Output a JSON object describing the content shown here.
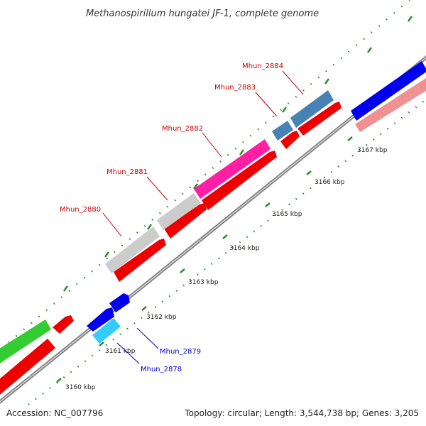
{
  "title": "Methanospirillum hungatei JF-1, complete genome",
  "footer": {
    "accession": "Accession: NC_007796",
    "summary": "Topology: circular; Length: 3,544,738 bp; Genes: 3,205"
  },
  "colors": {
    "backbone": "#888888",
    "tick": "#2e8b2e",
    "label_red": "#cc0000",
    "label_blue": "#0000cc"
  },
  "scale_labels": [
    "3160 kbp",
    "3161 kbp",
    "3162 kbp",
    "3163 kbp",
    "3164 kbp",
    "3165 kbp",
    "3166 kbp",
    "3167 kbp"
  ],
  "genes": [
    {
      "label": "Mhun_2878",
      "color": "#33ccff",
      "label_color": "#0000cc"
    },
    {
      "label": "Mhun_2879",
      "color": "#0000ee",
      "label_color": "#0000cc"
    },
    {
      "label": "Mhun_2880",
      "color": "#cccccc",
      "label_color": "#cc0000"
    },
    {
      "label": "Mhun_2881",
      "color": "#cccccc",
      "label_color": "#cc0000"
    },
    {
      "label": "Mhun_2882",
      "color": "#ff1fa5",
      "label_color": "#cc0000"
    },
    {
      "label": "Mhun_2883",
      "color": "#4682b4",
      "label_color": "#cc0000"
    },
    {
      "label": "Mhun_2884",
      "color": "#4682b4",
      "label_color": "#cc0000"
    }
  ]
}
